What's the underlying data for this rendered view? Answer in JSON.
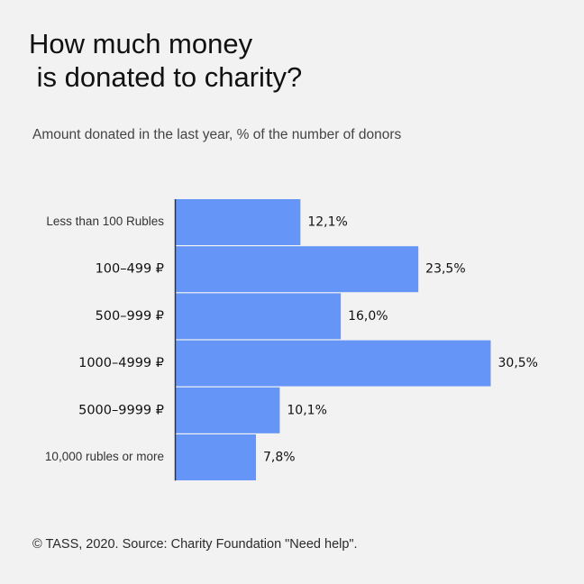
{
  "header": {
    "title_line1": "How much money",
    "title_line2": " is donated to charity?",
    "subtitle": "Amount donated in the last year, % of the number of donors"
  },
  "footer": {
    "source": "© TASS, 2020. Source: Charity Foundation \"Need help\"."
  },
  "colors": {
    "bar": "#6495f7",
    "axis": "#333333",
    "background": "#f2f2f2"
  },
  "chart_data": {
    "type": "bar",
    "orientation": "horizontal",
    "title": "How much money is donated to charity?",
    "subtitle": "Amount donated in the last year, % of the number of donors",
    "categories": [
      "Less than 100 Rubles",
      "100–499 ₽",
      "500–999 ₽",
      "1000–4999 ₽",
      "5000–9999 ₽",
      "10,000 rubles or more"
    ],
    "values": [
      12.1,
      23.5,
      16.0,
      30.5,
      10.1,
      7.8
    ],
    "value_labels": [
      "12,1%",
      "23,5%",
      "16,0%",
      "30,5%",
      "10,1%",
      "7,8%"
    ],
    "xlabel": "",
    "ylabel": "",
    "xlim": [
      0,
      30.5
    ],
    "grid": false,
    "legend": "none"
  }
}
